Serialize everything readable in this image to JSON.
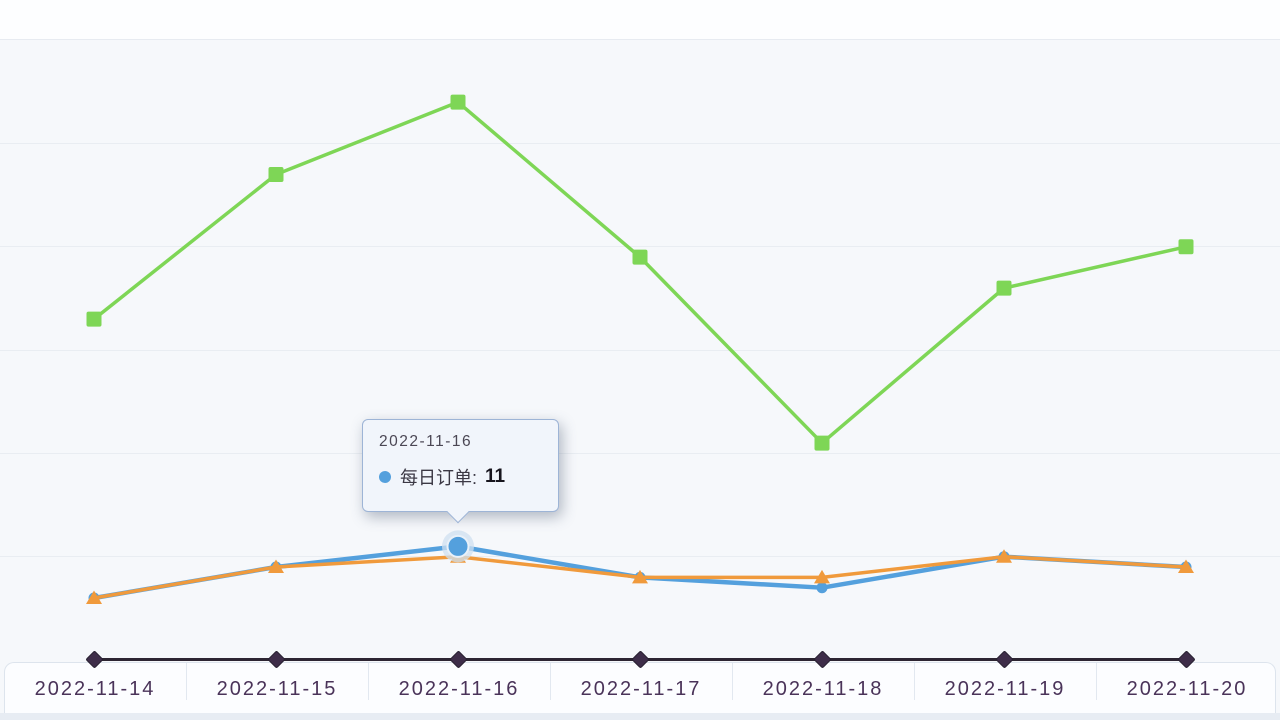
{
  "chart_data": {
    "type": "line",
    "categories": [
      "2022-11-14",
      "2022-11-15",
      "2022-11-16",
      "2022-11-17",
      "2022-11-18",
      "2022-11-19",
      "2022-11-20"
    ],
    "series": [
      {
        "name": "",
        "marker": "square",
        "color": "#7ed656",
        "values": [
          33,
          47,
          54,
          39,
          21,
          36,
          40
        ]
      },
      {
        "name": "每日订单",
        "marker": "circle",
        "color": "#54a0dd",
        "values": [
          6,
          9,
          11,
          8,
          7,
          10,
          9
        ]
      },
      {
        "name": "",
        "marker": "triangle",
        "color": "#f09a3c",
        "values": [
          6,
          9,
          10,
          8,
          8,
          10,
          9
        ]
      }
    ],
    "ylim": [
      0,
      60
    ],
    "grid": true,
    "legend": "none",
    "highlight": {
      "series_index": 1,
      "category_index": 2
    }
  },
  "tooltip": {
    "date": "2022-11-16",
    "series_label": "每日订单:",
    "value": "11"
  },
  "axis": {
    "line_color": "#2d2532",
    "label_color": "#4a3359",
    "marker": "diamond"
  },
  "colors": {
    "page_bg": "#e7ecf3",
    "card_bg": "#f6f8fb",
    "gridline": "#e9edf2",
    "tooltip_bg": "#f1f5fb",
    "tooltip_border": "#9db4d6",
    "highlight_halo": "#cfe0f0"
  }
}
